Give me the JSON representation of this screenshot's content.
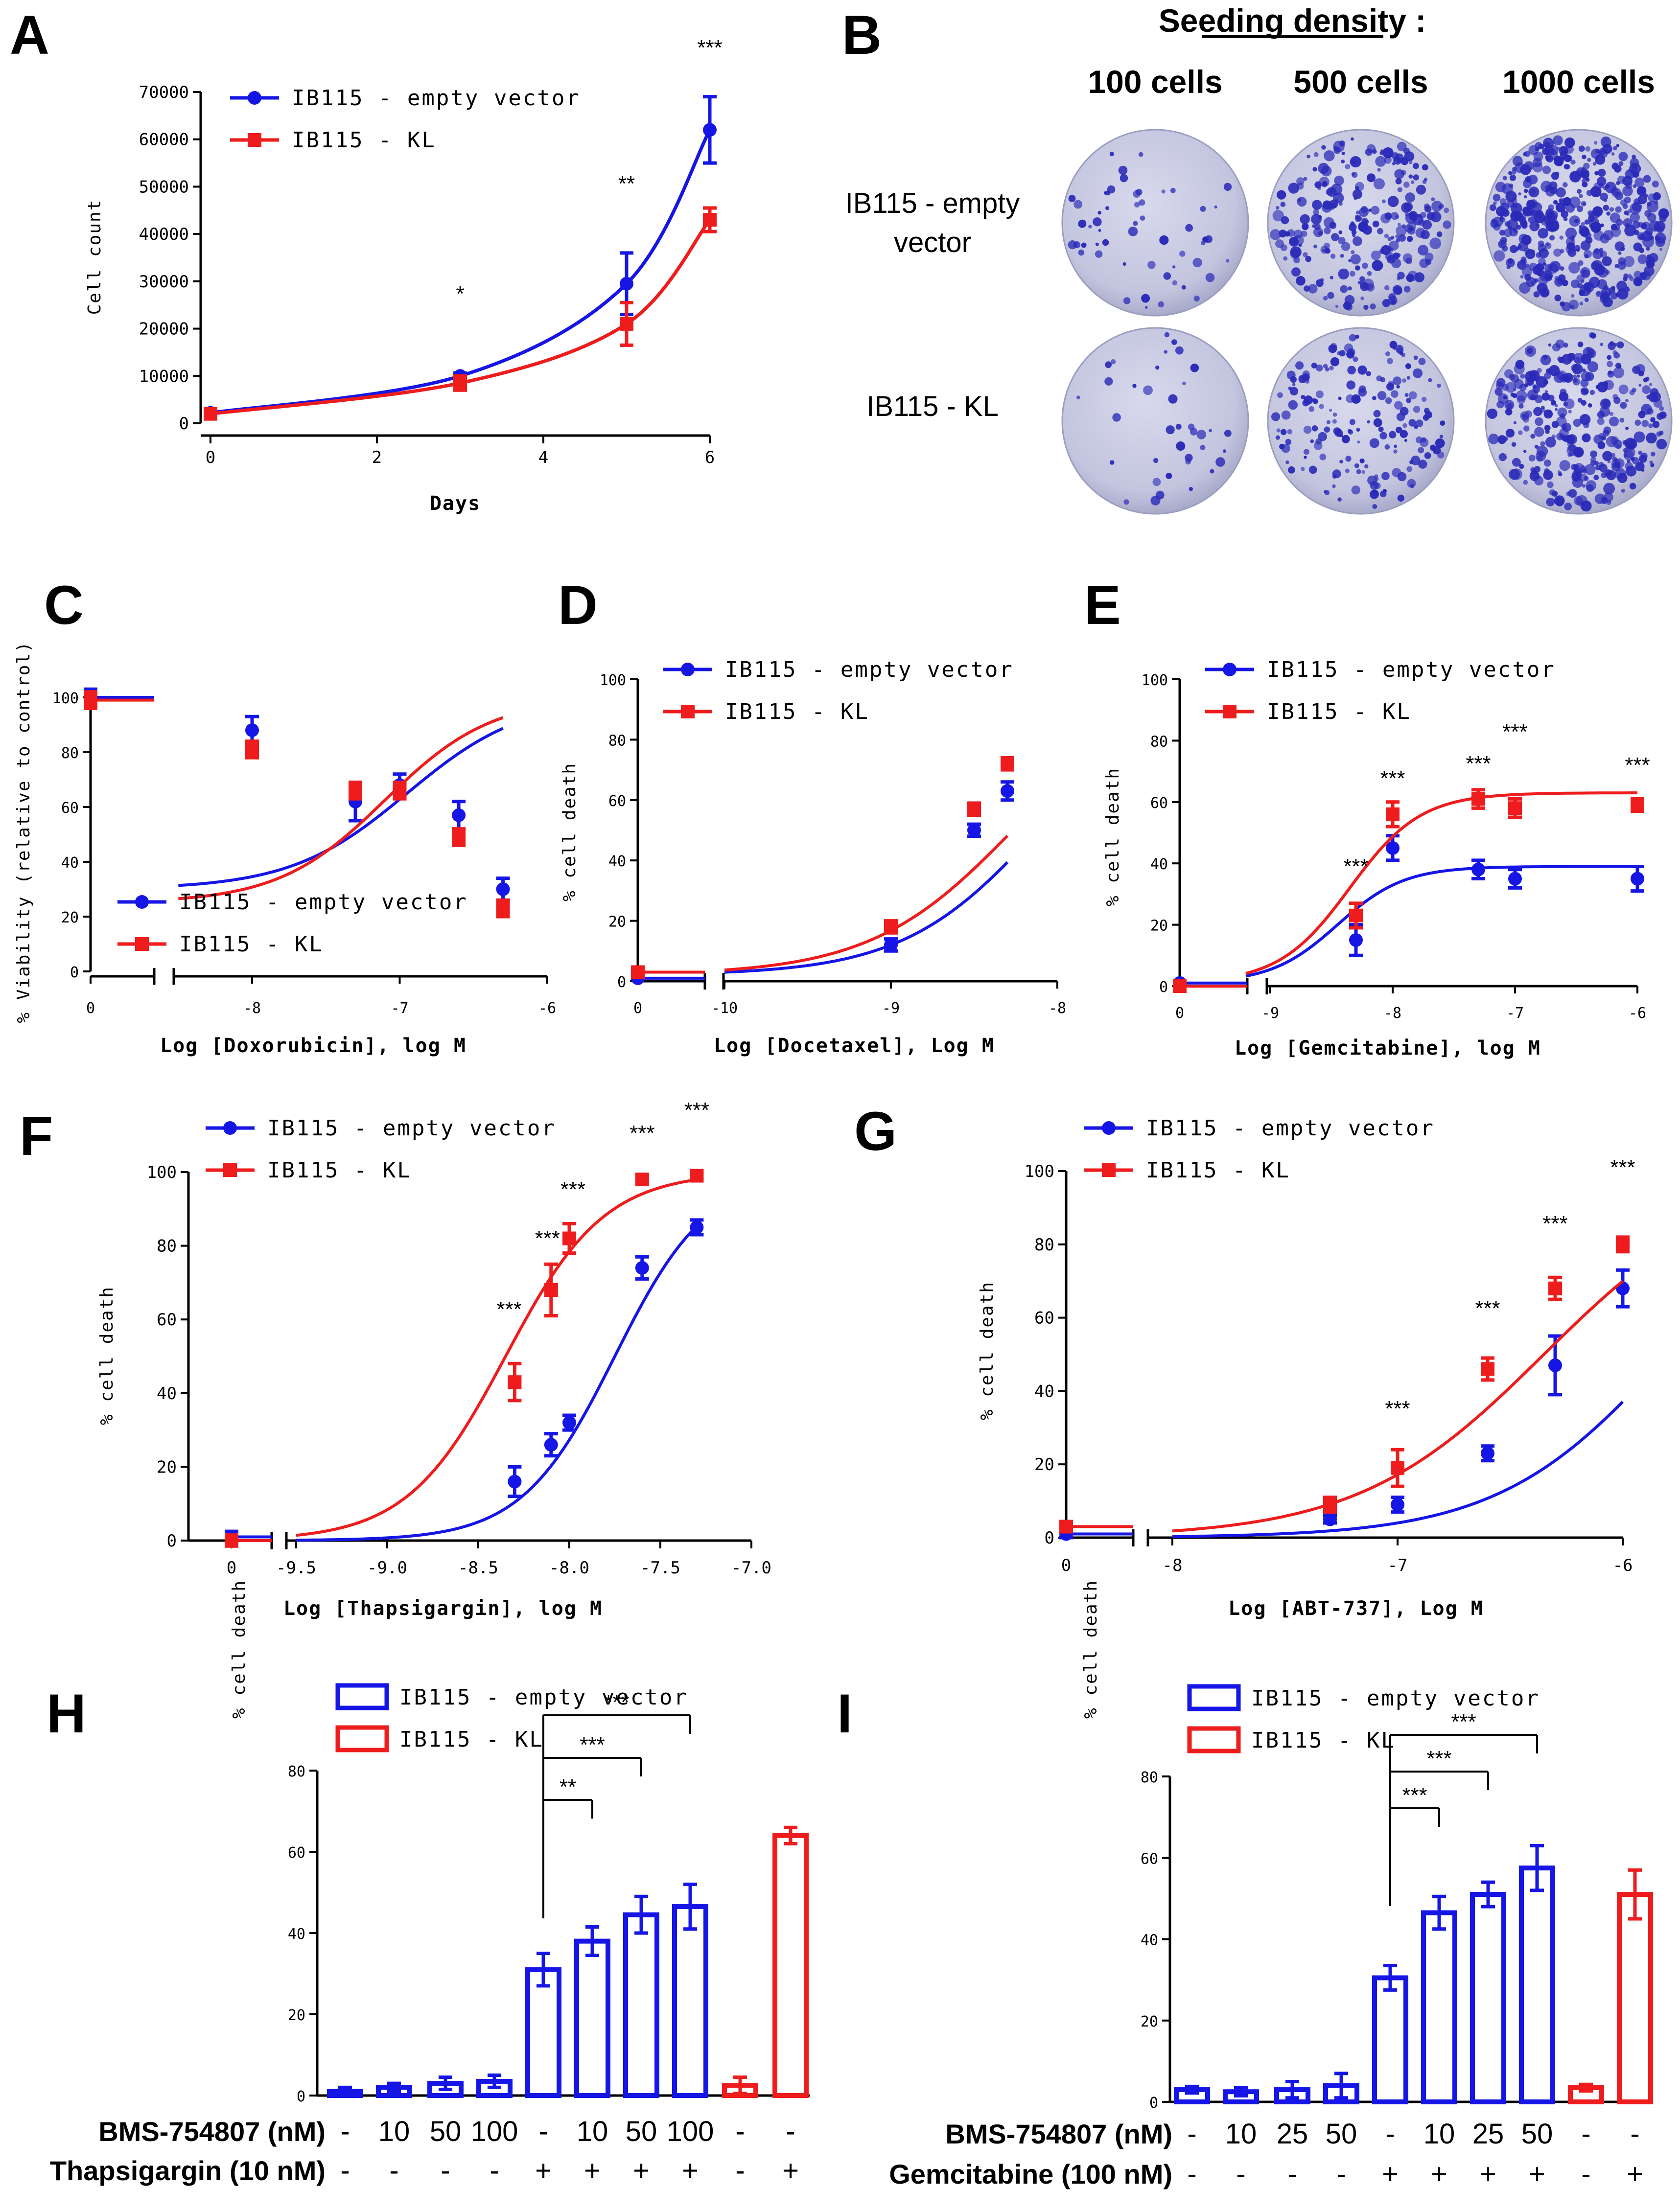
{
  "panel_labels": [
    "A",
    "B",
    "C",
    "D",
    "E",
    "F",
    "G",
    "H",
    "I"
  ],
  "colors": {
    "empty_vector": "#1515e6",
    "kl": "#ee1c1c",
    "axis": "#000000",
    "plate": "#c9cbe3",
    "colony": "#2a2ab8"
  },
  "legend": {
    "empty_vector": "IB115 - empty vector",
    "kl": "IB115 - KL"
  },
  "panel_b": {
    "title": "Seeding density :",
    "columns": [
      "100 cells",
      "500 cells",
      "1000 cells"
    ],
    "rows": [
      "IB115 - empty\nvector",
      "IB115 - KL"
    ],
    "colony_density": [
      [
        0.12,
        0.55,
        0.95
      ],
      [
        0.08,
        0.4,
        0.7
      ]
    ]
  },
  "chart_data": [
    {
      "id": "A",
      "type": "line",
      "xlabel": "Days",
      "ylabel": "Cell count",
      "xlim": [
        0,
        6
      ],
      "ylim": [
        0,
        70000
      ],
      "xticks": [
        "0",
        "2",
        "4",
        "6"
      ],
      "yticks": [
        "0",
        "10000",
        "20000",
        "30000",
        "40000",
        "50000",
        "60000",
        "70000"
      ],
      "x": [
        0,
        3,
        5,
        6
      ],
      "series": [
        {
          "name": "IB115 - empty vector",
          "values": [
            2200,
            10000,
            29500,
            62000
          ],
          "errors": [
            300,
            600,
            6500,
            7000
          ]
        },
        {
          "name": "IB115 - KL",
          "values": [
            2000,
            8500,
            21000,
            43000
          ],
          "errors": [
            300,
            1500,
            4500,
            2500
          ]
        }
      ],
      "annotations": [
        {
          "x": 3,
          "text": "*"
        },
        {
          "x": 5,
          "text": "**"
        },
        {
          "x": 6,
          "text": "***"
        }
      ]
    },
    {
      "id": "C",
      "type": "line",
      "xlabel": "Log [Doxorubicin], log M",
      "ylabel": "% Viability (relative to control)",
      "ylim": [
        0,
        100
      ],
      "xticks": [
        "0",
        "-8",
        "-7",
        "-6"
      ],
      "yticks": [
        "0",
        "20",
        "40",
        "60",
        "80",
        "100"
      ],
      "control_x": "0",
      "x": [
        -8,
        -7.3,
        -7,
        -6.6,
        -6.3
      ],
      "series": [
        {
          "name": "IB115 - empty vector",
          "control": 100,
          "values": [
            88,
            62,
            68,
            57,
            30
          ],
          "errors": [
            5,
            7,
            4,
            5,
            4
          ]
        },
        {
          "name": "IB115 - KL",
          "control": 99,
          "values": [
            81,
            66,
            66,
            49,
            23
          ],
          "errors": [
            3,
            3,
            3,
            3,
            3
          ]
        }
      ]
    },
    {
      "id": "D",
      "type": "line",
      "xlabel": "Log [Docetaxel], Log M",
      "ylabel": "% cell death",
      "ylim": [
        0,
        100
      ],
      "xticks": [
        "0",
        "-10",
        "-9",
        "-8"
      ],
      "yticks": [
        "0",
        "20",
        "40",
        "60",
        "80",
        "100"
      ],
      "control_x": "0",
      "x": [
        -9,
        -8.5,
        -8.3
      ],
      "series": [
        {
          "name": "IB115 - empty vector",
          "control": 1,
          "values": [
            12,
            50,
            63
          ],
          "errors": [
            2,
            2,
            3
          ]
        },
        {
          "name": "IB115 - KL",
          "control": 3,
          "values": [
            18,
            57,
            72
          ],
          "errors": [
            2,
            2,
            2
          ]
        }
      ]
    },
    {
      "id": "E",
      "type": "line",
      "xlabel": "Log [Gemcitabine], log M",
      "ylabel": "% cell death",
      "ylim": [
        0,
        100
      ],
      "xticks": [
        "0",
        "-9",
        "-8",
        "-7",
        "-6"
      ],
      "yticks": [
        "0",
        "20",
        "40",
        "60",
        "80",
        "100"
      ],
      "control_x": "0",
      "x": [
        -8.3,
        -8,
        -7.3,
        -7,
        -6
      ],
      "series": [
        {
          "name": "IB115 - empty vector",
          "control": 1,
          "values": [
            15,
            45,
            38,
            35,
            35
          ],
          "errors": [
            5,
            4,
            3,
            3,
            4
          ]
        },
        {
          "name": "IB115 - KL",
          "control": 0,
          "values": [
            23,
            56,
            61,
            58,
            59
          ],
          "errors": [
            4,
            4,
            3,
            3,
            2
          ]
        }
      ],
      "annotations": [
        {
          "x": -8.3,
          "text": "***"
        },
        {
          "x": -8,
          "text": "***"
        },
        {
          "x": -7.3,
          "text": "***"
        },
        {
          "x": -7,
          "text": "***"
        },
        {
          "x": -6,
          "text": "***"
        }
      ]
    },
    {
      "id": "F",
      "type": "line",
      "xlabel": "Log [Thapsigargin], log M",
      "ylabel": "% cell death",
      "ylim": [
        0,
        100
      ],
      "xticks": [
        "0",
        "-9.5",
        "-9.0",
        "-8.5",
        "-8.0",
        "-7.5",
        "-7.0"
      ],
      "yticks": [
        "0",
        "20",
        "40",
        "60",
        "80",
        "100"
      ],
      "control_x": "0",
      "x": [
        -8.3,
        -8.1,
        -8,
        -7.6,
        -7.3
      ],
      "series": [
        {
          "name": "IB115 - empty vector",
          "control": 1,
          "values": [
            16,
            26,
            32,
            74,
            85
          ],
          "errors": [
            4,
            3,
            2,
            3,
            2
          ]
        },
        {
          "name": "IB115 - KL",
          "control": 0,
          "values": [
            43,
            68,
            82,
            98,
            99
          ],
          "errors": [
            5,
            7,
            4,
            1,
            1
          ]
        }
      ],
      "annotations": [
        {
          "x": -8.3,
          "text": "***"
        },
        {
          "x": -8.1,
          "text": "***"
        },
        {
          "x": -8,
          "text": "***"
        },
        {
          "x": -7.6,
          "text": "***"
        },
        {
          "x": -7.3,
          "text": "***"
        }
      ]
    },
    {
      "id": "G",
      "type": "line",
      "xlabel": "Log [ABT-737], Log M",
      "ylabel": "% cell death",
      "ylim": [
        0,
        100
      ],
      "xticks": [
        "0",
        "-8",
        "-7",
        "-6"
      ],
      "yticks": [
        "0",
        "20",
        "40",
        "60",
        "80",
        "100"
      ],
      "control_x": "0",
      "x": [
        -7.3,
        -7,
        -6.6,
        -6.3,
        -6
      ],
      "series": [
        {
          "name": "IB115 - empty vector",
          "control": 1,
          "values": [
            5,
            9,
            23,
            47,
            68
          ],
          "errors": [
            1,
            2,
            2,
            8,
            5
          ]
        },
        {
          "name": "IB115 - KL",
          "control": 3,
          "values": [
            9,
            19,
            46,
            68,
            80
          ],
          "errors": [
            2,
            5,
            3,
            3,
            2
          ]
        }
      ],
      "annotations": [
        {
          "x": -7,
          "text": "***"
        },
        {
          "x": -6.6,
          "text": "***"
        },
        {
          "x": -6.3,
          "text": "***"
        },
        {
          "x": -6,
          "text": "***"
        }
      ]
    },
    {
      "id": "H",
      "type": "bar",
      "ylabel": "% cell death",
      "ylim": [
        0,
        80
      ],
      "yticks": [
        "0",
        "20",
        "40",
        "60",
        "80"
      ],
      "categories": [
        "1",
        "2",
        "3",
        "4",
        "5",
        "6",
        "7",
        "8",
        "9",
        "10"
      ],
      "row_labels": [
        "BMS-754807 (nM)",
        "Thapsigargin (10 nM)"
      ],
      "row1": [
        "-",
        "10",
        "50",
        "100",
        "-",
        "10",
        "50",
        "100",
        "-",
        "-"
      ],
      "row2": [
        "-",
        "-",
        "-",
        "-",
        "+",
        "+",
        "+",
        "+",
        "-",
        "+"
      ],
      "groups": [
        "IB115 - empty vector",
        "IB115 - empty vector",
        "IB115 - empty vector",
        "IB115 - empty vector",
        "IB115 - empty vector",
        "IB115 - empty vector",
        "IB115 - empty vector",
        "IB115 - empty vector",
        "IB115 - KL",
        "IB115 - KL"
      ],
      "values": [
        1,
        2,
        3,
        3.5,
        31,
        38,
        44.5,
        46.5,
        2.5,
        64
      ],
      "errors": [
        1,
        1,
        1.5,
        1.5,
        4,
        3.5,
        4.5,
        5.5,
        2,
        2
      ],
      "brackets": [
        {
          "from": 4,
          "to": 5,
          "text": "**"
        },
        {
          "from": 4,
          "to": 6,
          "text": "***"
        },
        {
          "from": 4,
          "to": 7,
          "text": "***"
        }
      ]
    },
    {
      "id": "I",
      "type": "bar",
      "ylabel": "% cell death",
      "ylim": [
        0,
        80
      ],
      "yticks": [
        "0",
        "20",
        "40",
        "60",
        "80"
      ],
      "categories": [
        "1",
        "2",
        "3",
        "4",
        "5",
        "6",
        "7",
        "8",
        "9",
        "10"
      ],
      "row_labels": [
        "BMS-754807 (nM)",
        "Gemcitabine (100 nM)"
      ],
      "row1": [
        "-",
        "10",
        "25",
        "50",
        "-",
        "10",
        "25",
        "50",
        "-",
        "-"
      ],
      "row2": [
        "-",
        "-",
        "-",
        "-",
        "+",
        "+",
        "+",
        "+",
        "-",
        "+"
      ],
      "groups": [
        "IB115 - empty vector",
        "IB115 - empty vector",
        "IB115 - empty vector",
        "IB115 - empty vector",
        "IB115 - empty vector",
        "IB115 - empty vector",
        "IB115 - empty vector",
        "IB115 - empty vector",
        "IB115 - KL",
        "IB115 - KL"
      ],
      "values": [
        3,
        2.5,
        3,
        4,
        30.5,
        46.5,
        51,
        57.5,
        3.5,
        51
      ],
      "errors": [
        0.8,
        1,
        2,
        3,
        3,
        4,
        3,
        5.5,
        0.8,
        6
      ],
      "brackets": [
        {
          "from": 4,
          "to": 5,
          "text": "***"
        },
        {
          "from": 4,
          "to": 6,
          "text": "***"
        },
        {
          "from": 4,
          "to": 7,
          "text": "***"
        }
      ]
    }
  ]
}
